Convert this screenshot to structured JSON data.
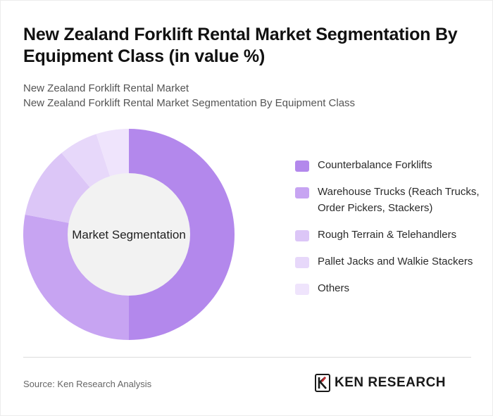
{
  "header": {
    "title": "New Zealand Forklift Rental Market Segmentation By Equipment Class (in value %)",
    "subtitle_lines": [
      "New Zealand Forklift Rental Market",
      "New Zealand Forklift Rental Market Segmentation By Equipment Class"
    ]
  },
  "chart_data": {
    "type": "pie",
    "center_label": "Market Segmentation",
    "slices": [
      {
        "name": "Counterbalance Forklifts",
        "value": 50,
        "color": "#b388ec"
      },
      {
        "name": "Warehouse Trucks (Reach Trucks, Order Pickers, Stackers)",
        "value": 28,
        "color": "#c7a4f2"
      },
      {
        "name": "Rough Terrain & Telehandlers",
        "value": 11,
        "color": "#dcc6f7"
      },
      {
        "name": "Pallet Jacks and Walkie Stackers",
        "value": 6,
        "color": "#e7d8fa"
      },
      {
        "name": "Others",
        "value": 5,
        "color": "#efe4fc"
      }
    ],
    "legend_position": "right"
  },
  "colors": {
    "hole": "#f2f2f2",
    "brand_mark": "#c0282d"
  },
  "footer": {
    "source": "Source: Ken Research Analysis",
    "brand_name": "KEN RESEARCH",
    "brand_icon": "ken-research-logo-icon"
  }
}
